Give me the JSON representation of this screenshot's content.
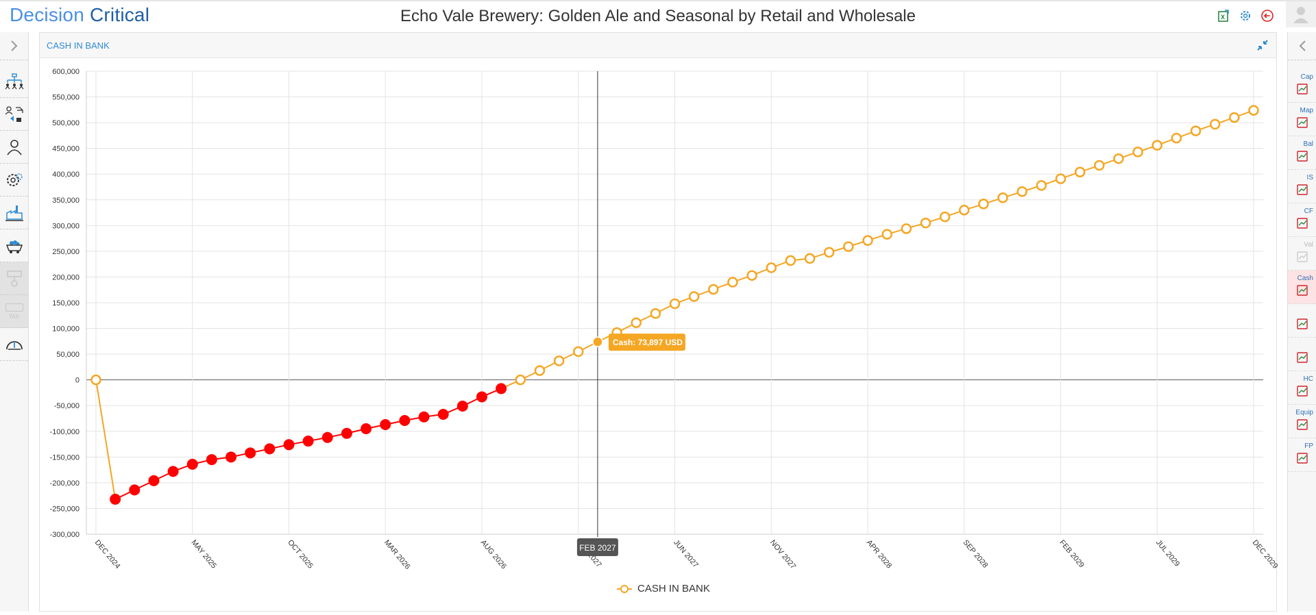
{
  "app": {
    "logo_part1": "Decision ",
    "logo_part2": "Critical",
    "title": "Echo Vale Brewery: Golden Ale and Seasonal by Retail and Wholesale"
  },
  "header_icons": [
    "excel-export-icon",
    "settings-icon",
    "back-icon"
  ],
  "left_sidebar": {
    "items": [
      "org-chart-icon",
      "people-flow-icon",
      "user-icon",
      "settings-gear-icon",
      "factory-icon",
      "mining-cart-icon",
      "assets-icon",
      "tax-icon",
      "dashboard-gauge-icon"
    ],
    "tax_label": "TAX"
  },
  "right_sidebar": {
    "items": [
      {
        "label": "Cap",
        "icon": "cap-table-icon",
        "state": "normal"
      },
      {
        "label": "Map",
        "icon": "map-icon",
        "state": "normal"
      },
      {
        "label": "Bal",
        "icon": "balance-sheet-icon",
        "state": "normal"
      },
      {
        "label": "IS",
        "icon": "income-statement-icon",
        "state": "normal"
      },
      {
        "label": "CF",
        "icon": "cash-flow-icon",
        "state": "normal"
      },
      {
        "label": "Val",
        "icon": "valuation-icon",
        "state": "disabled"
      },
      {
        "label": "Cash",
        "icon": "cash-chart-icon",
        "state": "active"
      },
      {
        "label": "",
        "icon": "revenue-chart-icon",
        "state": "normal"
      },
      {
        "label": "",
        "icon": "cost-chart-icon",
        "state": "normal"
      },
      {
        "label": "HC",
        "icon": "headcount-chart-icon",
        "state": "normal"
      },
      {
        "label": "Equip",
        "icon": "equipment-chart-icon",
        "state": "normal"
      },
      {
        "label": "FP",
        "icon": "financial-plan-icon",
        "state": "normal"
      }
    ]
  },
  "panel": {
    "title": "CASH IN BANK"
  },
  "legend": {
    "label": "CASH IN BANK"
  },
  "tooltip": {
    "text": "Cash: 73,897 USD",
    "month_label": "FEB 2027"
  },
  "colors": {
    "positive": "#f5a623",
    "negative": "#ff0000",
    "accent": "#2e8bd1"
  },
  "chart_data": {
    "type": "line",
    "series": [
      {
        "name": "CASH IN BANK"
      }
    ],
    "ylim": [
      -300000,
      600000
    ],
    "y_ticks": [
      "600,000",
      "550,000",
      "500,000",
      "450,000",
      "400,000",
      "350,000",
      "300,000",
      "250,000",
      "200,000",
      "150,000",
      "100,000",
      "50,000",
      "0",
      "-50,000",
      "-100,000",
      "-150,000",
      "-200,000",
      "-250,000",
      "-300,000"
    ],
    "x_tick_labels": [
      "DEC 2024",
      "MAY 2025",
      "OCT 2025",
      "MAR 2026",
      "AUG 2026",
      "JAN 2027",
      "JUN 2027",
      "NOV 2027",
      "APR 2028",
      "SEP 2028",
      "FEB 2029",
      "JUL 2029",
      "DEC 2029"
    ],
    "x_start": "DEC 2024",
    "x_end": "DEC 2029",
    "values": [
      0,
      -232000,
      -214000,
      -196000,
      -178000,
      -164000,
      -155000,
      -150000,
      -142000,
      -134000,
      -126000,
      -119000,
      -112000,
      -104000,
      -95000,
      -87000,
      -79000,
      -72000,
      -67000,
      -51000,
      -33000,
      -17000,
      0,
      18000,
      37000,
      55000,
      73897,
      92000,
      111000,
      129000,
      148000,
      162000,
      176000,
      190000,
      203000,
      218000,
      232000,
      236000,
      248000,
      259000,
      271000,
      283000,
      294000,
      305000,
      317000,
      330000,
      342000,
      354000,
      366000,
      378000,
      391000,
      404000,
      417000,
      430000,
      443000,
      456000,
      470000,
      484000,
      497000,
      510000,
      524000
    ],
    "highlight_index": 26
  }
}
